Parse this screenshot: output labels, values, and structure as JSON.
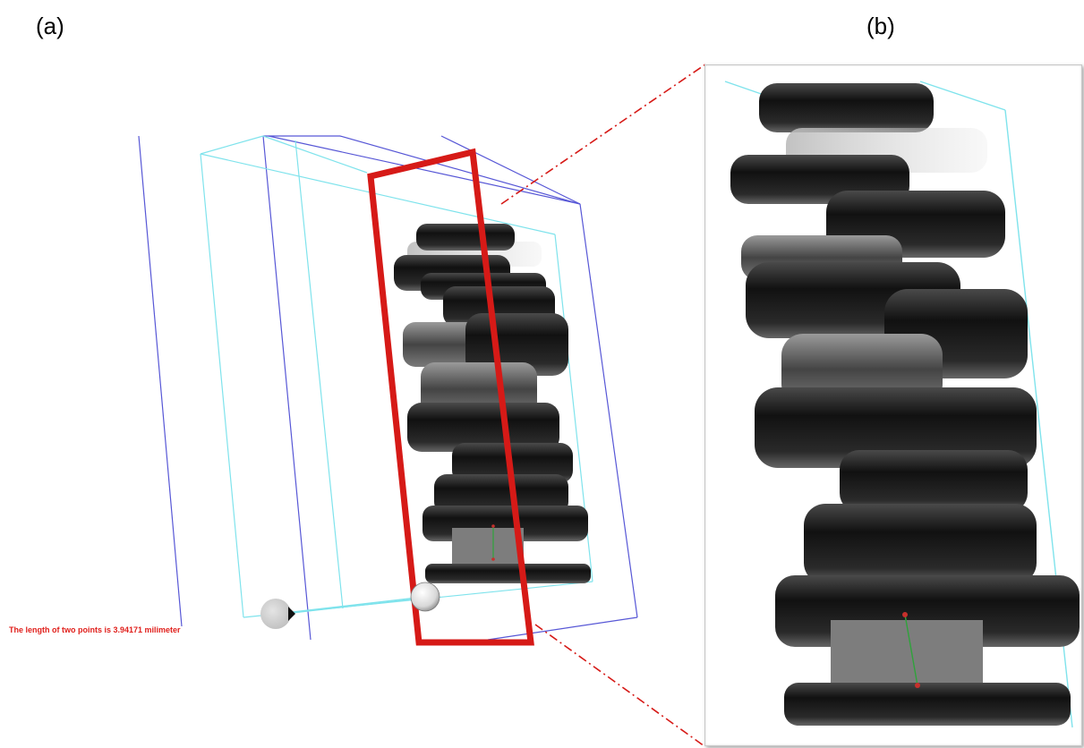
{
  "panels": {
    "a_label": "(a)",
    "b_label": "(b)"
  },
  "measurement": {
    "text": "The length of two points is 3.94171 milimeter"
  },
  "colors": {
    "red_frame": "#d61a17",
    "cyan_box": "#7fe3ec",
    "blue_box": "#5757d6",
    "object_dark": "#1a1a1a",
    "measure_line": "#2fa33b",
    "measure_point": "#c6302c"
  },
  "icons": {
    "left_point": "gray-sphere-icon",
    "right_point": "white-sphere-icon"
  }
}
